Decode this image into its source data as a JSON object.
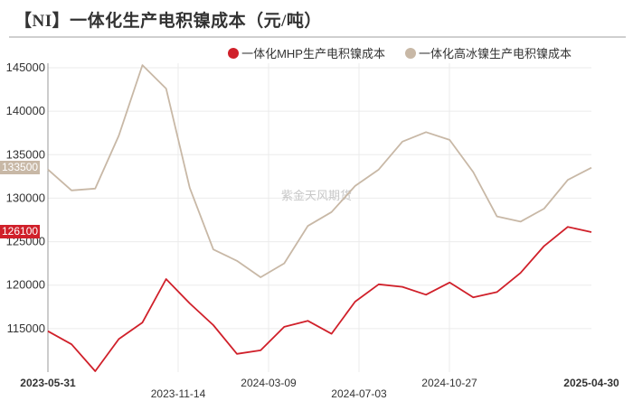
{
  "header": {
    "title": "【NI】一体化生产电积镍成本（元/吨）"
  },
  "legend": {
    "items": [
      {
        "label": "一体化MHP生产电积镍成本",
        "color": "#d0202a"
      },
      {
        "label": "一体化高冰镍生产电积镍成本",
        "color": "#c8b8a6"
      }
    ]
  },
  "watermark": "紫金天风期货",
  "end_labels": {
    "high_ice": "133500",
    "mhp": "126100"
  },
  "chart_data": {
    "type": "line",
    "title": "【NI】一体化生产电积镍成本（元/吨）",
    "xlabel": "",
    "ylabel": "",
    "ylim": [
      110000,
      145000
    ],
    "y_ticks": [
      "145000",
      "140000",
      "135000",
      "130000",
      "125000",
      "120000",
      "115000"
    ],
    "x_tick_labels": [
      "2023-05-31",
      "2023-11-14",
      "2024-03-09",
      "2024-07-03",
      "2024-10-27",
      "2025-04-30"
    ],
    "grid": true,
    "legend_position": "top-right",
    "x_count": 24,
    "series": [
      {
        "name": "一体化MHP生产电积镍成本",
        "color": "#d0202a",
        "values": [
          114700,
          113200,
          110100,
          113800,
          115700,
          120700,
          117900,
          115400,
          112100,
          112500,
          115200,
          115900,
          114400,
          118100,
          120100,
          119800,
          118900,
          120300,
          118600,
          119200,
          121400,
          124500,
          126700,
          126100
        ]
      },
      {
        "name": "一体化高冰镍生产电积镍成本",
        "color": "#c8b8a6",
        "values": [
          133300,
          130900,
          131100,
          137200,
          145300,
          142600,
          131200,
          124100,
          122800,
          120900,
          122500,
          126800,
          128400,
          131400,
          133300,
          136500,
          137600,
          136700,
          133000,
          127900,
          127300,
          128800,
          132100,
          133500
        ]
      }
    ]
  }
}
